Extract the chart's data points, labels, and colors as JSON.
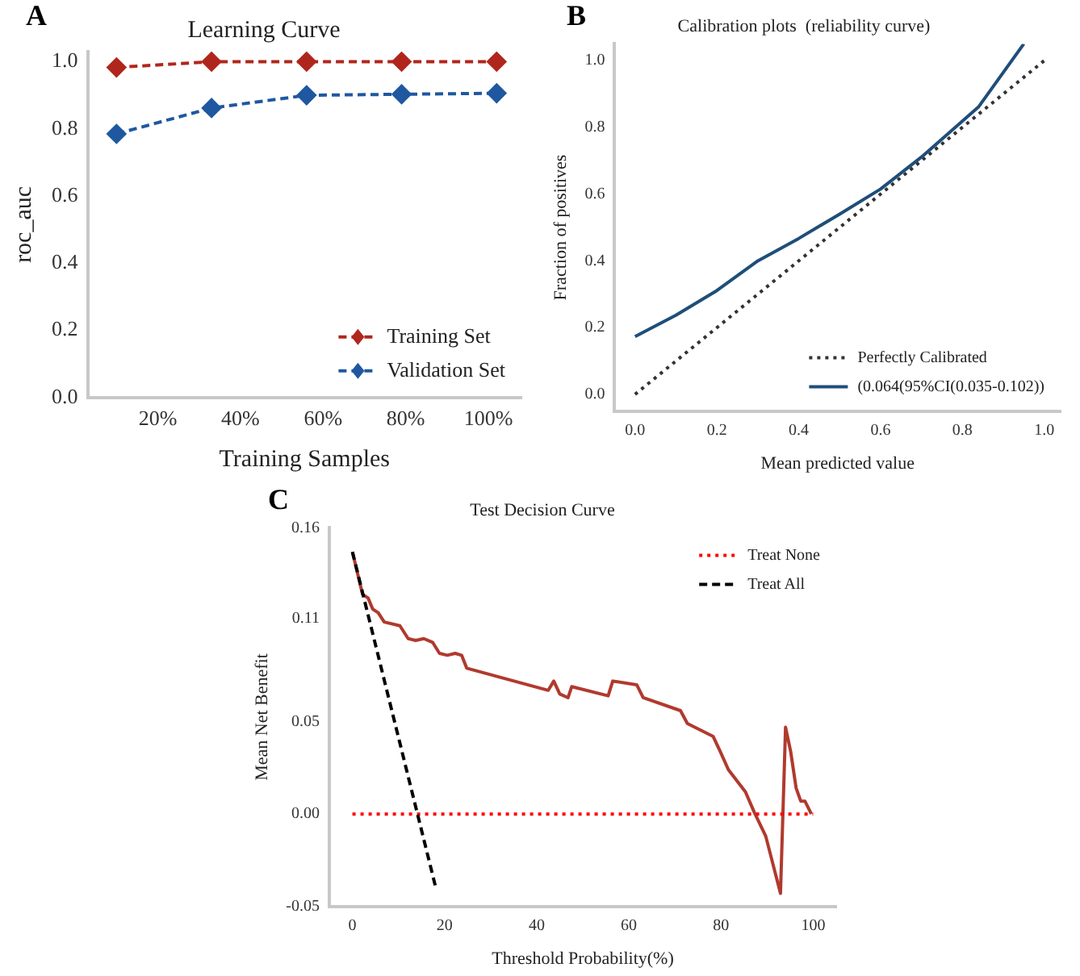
{
  "chart_data": [
    {
      "type": "line",
      "title": "Learning Curve",
      "xlabel": "Training Samples",
      "ylabel": "roc_auc",
      "annotations": [
        "A"
      ],
      "xlim": [
        3,
        108
      ],
      "xticks": [
        {
          "value": 20,
          "label": "20%"
        },
        {
          "value": 40,
          "label": "40%"
        },
        {
          "value": 60,
          "label": "60%"
        },
        {
          "value": 80,
          "label": "80%"
        },
        {
          "value": 100,
          "label": "100%"
        }
      ],
      "ylim": [
        0,
        1.03
      ],
      "yticks": [
        {
          "value": 0,
          "label": "0.0"
        },
        {
          "value": 0.2,
          "label": "0.2"
        },
        {
          "value": 0.4,
          "label": "0.4"
        },
        {
          "value": 0.6,
          "label": "0.6"
        },
        {
          "value": 0.8,
          "label": "0.8"
        },
        {
          "value": 1,
          "label": "1.0"
        }
      ],
      "x": [
        10,
        33,
        56,
        79,
        102
      ],
      "grid": false,
      "legend": "bottom right",
      "marker": "diamond",
      "line_style": "dashed",
      "series": [
        {
          "name": "Training Set",
          "color": "#b0261c",
          "values": [
            0.983,
            1.0,
            1.0,
            1.0,
            1.0
          ]
        },
        {
          "name": "Validation Set",
          "color": "#1f58a0",
          "values": [
            0.785,
            0.862,
            0.9,
            0.903,
            0.906
          ]
        }
      ]
    },
    {
      "type": "line",
      "title": "Calibration plots  (reliability curve)",
      "xlabel": "Mean predicted value",
      "ylabel": "Fraction of positives",
      "annotations": [
        "B"
      ],
      "xlim": [
        -0.05,
        1.04
      ],
      "xticks": [
        {
          "value": 0,
          "label": "0.0"
        },
        {
          "value": 0.2,
          "label": "0.2"
        },
        {
          "value": 0.4,
          "label": "0.4"
        },
        {
          "value": 0.6,
          "label": "0.6"
        },
        {
          "value": 0.8,
          "label": "0.8"
        },
        {
          "value": 1,
          "label": "1.0"
        }
      ],
      "ylim": [
        -0.05,
        1.05
      ],
      "yticks": [
        {
          "value": 0,
          "label": "0.0"
        },
        {
          "value": 0.2,
          "label": "0.2"
        },
        {
          "value": 0.4,
          "label": "0.4"
        },
        {
          "value": 0.6,
          "label": "0.6"
        },
        {
          "value": 0.8,
          "label": "0.8"
        },
        {
          "value": 1,
          "label": "1.0"
        }
      ],
      "grid": false,
      "legend": "bottom right",
      "marker": "none",
      "series": [
        {
          "name": "Perfectly Calibrated",
          "color": "#333333",
          "line_style": "dotted",
          "x": [
            0,
            1
          ],
          "values": [
            0,
            1
          ]
        },
        {
          "name": "(0.064(95%CI(0.035-0.102))",
          "color": "#1f4e79",
          "line_style": "solid",
          "x": [
            0,
            0.1,
            0.2,
            0.3,
            0.4,
            0.5,
            0.6,
            0.7,
            0.84,
            0.95
          ],
          "values": [
            0.173,
            0.237,
            0.311,
            0.4,
            0.467,
            0.54,
            0.615,
            0.711,
            0.862,
            1.05
          ]
        }
      ]
    },
    {
      "type": "line",
      "title": "Test Decision Curve",
      "xlabel": "Threshold Probability(%)",
      "ylabel": "Mean Net Benefit",
      "annotations": [
        "C"
      ],
      "xlim": [
        -5,
        105
      ],
      "xticks": [
        0,
        20,
        40,
        60,
        80,
        100
      ],
      "ylim": [
        -0.05,
        0.155
      ],
      "yticks": [
        {
          "value": -0.05,
          "label": "-0.05"
        },
        {
          "value": 0,
          "label": "0.00"
        },
        {
          "value": 0.05,
          "label": "0.05"
        },
        {
          "value": 0.106,
          "label": "0.11"
        },
        {
          "value": 0.155,
          "label": "0.16"
        }
      ],
      "grid": false,
      "legend": "top right",
      "marker": "none",
      "series": [
        {
          "color": "#b03a2e",
          "line_style": "solid",
          "x": [
            0,
            2.2,
            3.4,
            4.4,
            5.6,
            6.9,
            10.3,
            12.1,
            13.7,
            15.5,
            17.4,
            18.9,
            20.6,
            22.3,
            23.7,
            24.8,
            42.5,
            43.7,
            45.0,
            46.8,
            47.6,
            55.5,
            56.5,
            61.7,
            63.1,
            71.2,
            72.7,
            78.3,
            79.8,
            81.6,
            85.3,
            87.2,
            89.7,
            92.9,
            94.0,
            95.1,
            96.3,
            97.3,
            98.2,
            99.6
          ],
          "values": [
            0.142,
            0.119,
            0.117,
            0.111,
            0.109,
            0.104,
            0.102,
            0.095,
            0.094,
            0.095,
            0.093,
            0.087,
            0.086,
            0.087,
            0.086,
            0.079,
            0.067,
            0.072,
            0.065,
            0.063,
            0.069,
            0.064,
            0.072,
            0.07,
            0.063,
            0.056,
            0.049,
            0.042,
            0.034,
            0.024,
            0.012,
            0.001,
            -0.012,
            -0.043,
            0.047,
            0.034,
            0.014,
            0.007,
            0.007,
            0
          ]
        },
        {
          "name": "Treat None",
          "color": "#ff0000",
          "line_style": "dotted",
          "x": [
            0,
            100
          ],
          "values": [
            0,
            0
          ]
        },
        {
          "name": "Treat All",
          "color": "#000000",
          "line_style": "dashed",
          "x": [
            0,
            18
          ],
          "values": [
            0.142,
            -0.039
          ]
        }
      ]
    }
  ]
}
